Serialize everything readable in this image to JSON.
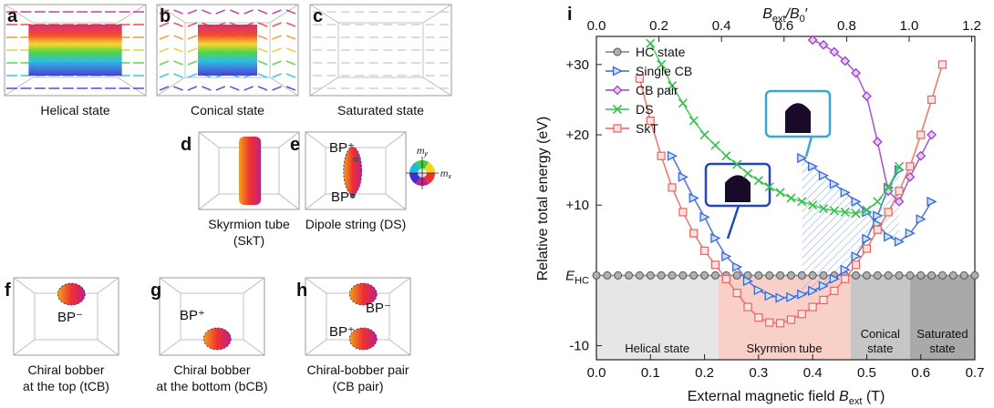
{
  "panels": [
    {
      "letter": "a",
      "caption": [
        "Helical state"
      ]
    },
    {
      "letter": "b",
      "caption": [
        "Conical state"
      ]
    },
    {
      "letter": "c",
      "caption": [
        "Saturated state"
      ]
    },
    {
      "letter": "d",
      "caption": [
        "Skyrmion tube",
        "(SkT)"
      ]
    },
    {
      "letter": "e",
      "caption": [
        "Dipole string (DS)"
      ],
      "points": [
        "BP⁺",
        "BP⁻"
      ]
    },
    {
      "letter": "f",
      "caption": [
        "Chiral bobber",
        "at the top (tCB)"
      ],
      "points": [
        "BP⁻"
      ]
    },
    {
      "letter": "g",
      "caption": [
        "Chiral bobber",
        "at the bottom (bCB)"
      ],
      "points": [
        "BP⁺"
      ]
    },
    {
      "letter": "h",
      "caption": [
        "Chiral-bobber pair",
        "(CB pair)"
      ],
      "points": [
        "BP⁺",
        "BP⁻"
      ]
    }
  ],
  "color_wheel": {
    "y_label": [
      "m",
      "y"
    ],
    "x_label": [
      "m",
      "x"
    ]
  },
  "chart_data": {
    "type": "line",
    "panel_letter": "i",
    "x_label": [
      "External magnetic field ",
      "B",
      "ext",
      " (T)"
    ],
    "y_label": "Relative total energy (eV)",
    "top_label": [
      "B",
      "ext",
      "/B",
      "0",
      "′"
    ],
    "xlim": [
      0,
      0.7
    ],
    "xticks": [
      {
        "value": 0,
        "label": "0.0"
      },
      {
        "value": 0.1,
        "label": "0.1"
      },
      {
        "value": 0.2,
        "label": "0.2"
      },
      {
        "value": 0.3,
        "label": "0.3"
      },
      {
        "value": 0.4,
        "label": "0.4"
      },
      {
        "value": 0.5,
        "label": "0.5"
      },
      {
        "value": 0.6,
        "label": "0.6"
      },
      {
        "value": 0.7,
        "label": "0.7"
      }
    ],
    "x2lim": [
      0,
      1.21
    ],
    "x2ticks": [
      {
        "value": 0,
        "label": "0.0"
      },
      {
        "value": 0.2,
        "label": "0.2"
      },
      {
        "value": 0.4,
        "label": "0.4"
      },
      {
        "value": 0.6,
        "label": "0.6"
      },
      {
        "value": 0.8,
        "label": "0.8"
      },
      {
        "value": 1,
        "label": "1.0"
      },
      {
        "value": 1.2,
        "label": "1.2"
      }
    ],
    "ylim": [
      -12,
      34
    ],
    "yticks": [
      {
        "value": 30,
        "label": "+30"
      },
      {
        "value": 20,
        "label": "+20"
      },
      {
        "value": 10,
        "label": "+10"
      },
      {
        "value": 0,
        "label": "E",
        "sub": "HC"
      },
      -10
    ],
    "regions": [
      {
        "label": [
          "Helical state"
        ],
        "x": [
          0,
          0.225
        ],
        "color": "#e6e6e6"
      },
      {
        "label": [
          "Skyrmion tube"
        ],
        "x": [
          0.225,
          0.47
        ],
        "color": "#f9d0c8"
      },
      {
        "label": [
          "Conical",
          "state"
        ],
        "x": [
          0.47,
          0.58
        ],
        "color": "#c6c6c6"
      },
      {
        "label": [
          "Saturated",
          "state"
        ],
        "x": [
          0.58,
          0.7
        ],
        "color": "#a9a9a9"
      }
    ],
    "legend": "upper left",
    "series": [
      {
        "name": "HC state",
        "color": "#7f7f7f",
        "marker": "circle",
        "x": [
          0,
          0.02,
          0.04,
          0.06,
          0.08,
          0.1,
          0.12,
          0.14,
          0.16,
          0.18,
          0.2,
          0.22,
          0.24,
          0.26,
          0.28,
          0.3,
          0.32,
          0.34,
          0.36,
          0.38,
          0.4,
          0.42,
          0.44,
          0.46,
          0.48,
          0.5,
          0.52,
          0.54,
          0.56,
          0.58,
          0.6,
          0.62,
          0.64,
          0.66,
          0.68,
          0.7
        ],
        "values": [
          0,
          0,
          0,
          0,
          0,
          0,
          0,
          0,
          0,
          0,
          0,
          0,
          0,
          0,
          0,
          0,
          0,
          0,
          0,
          0,
          0,
          0,
          0,
          0,
          0,
          0,
          0,
          0,
          0,
          0,
          0,
          0,
          0,
          0,
          0,
          0
        ]
      },
      {
        "name": "Single CB",
        "color": "#3d63d6",
        "marker": "triangle",
        "x": [
          0.14,
          0.16,
          0.18,
          0.2,
          0.22,
          0.24,
          0.26,
          0.28,
          0.3,
          0.32,
          0.34,
          0.36,
          0.38,
          0.4,
          0.42,
          0.44,
          0.46,
          0.48,
          0.5,
          0.52,
          0.54,
          0.56,
          null,
          0.38,
          0.4,
          0.42,
          0.44,
          0.46,
          0.48,
          0.5,
          0.52,
          0.54,
          0.56,
          0.58,
          0.6,
          0.62
        ],
        "values": [
          17,
          14,
          11,
          8.3,
          5.3,
          2.7,
          1.2,
          -0.8,
          -2.1,
          -2.9,
          -3.2,
          -3.1,
          -2.7,
          -2.2,
          -1.5,
          -0.5,
          0.8,
          2.7,
          5.2,
          8.5,
          12.5,
          15,
          null,
          16.7,
          15.5,
          14.2,
          13,
          11.8,
          10.5,
          9,
          7.3,
          5.5,
          4.8,
          6,
          8,
          10.5
        ]
      },
      {
        "name": "CB pair",
        "color": "#9a3fc9",
        "marker": "diamond",
        "x": [
          0.4,
          0.42,
          0.44,
          0.46,
          0.48,
          0.5,
          0.52,
          0.54,
          0.56,
          0.58,
          0.6,
          0.62
        ],
        "values": [
          33.5,
          32.8,
          31.8,
          30.5,
          28.8,
          25.5,
          19,
          12,
          10.5,
          14,
          17,
          20
        ]
      },
      {
        "name": "DS",
        "color": "#35c24a",
        "marker": "x",
        "x": [
          0.1,
          0.12,
          0.14,
          0.16,
          0.18,
          0.2,
          0.22,
          0.24,
          0.26,
          0.28,
          0.3,
          0.32,
          0.34,
          0.36,
          0.38,
          0.4,
          0.42,
          0.44,
          0.46,
          0.48,
          0.5,
          0.52,
          0.54,
          0.56
        ],
        "values": [
          33,
          30,
          27,
          24.5,
          22,
          20,
          18.5,
          17,
          15.8,
          14.5,
          13.5,
          12.6,
          11.8,
          11,
          10.5,
          10,
          9.5,
          9.2,
          9,
          8.8,
          9.3,
          10.5,
          12.5,
          15.5
        ]
      },
      {
        "name": "SkT",
        "color": "#e8645e",
        "marker": "square",
        "x": [
          0.08,
          0.1,
          0.12,
          0.14,
          0.16,
          0.18,
          0.2,
          0.22,
          0.24,
          0.26,
          0.28,
          0.3,
          0.32,
          0.34,
          0.36,
          0.38,
          0.4,
          0.42,
          0.44,
          0.46,
          0.48,
          0.5,
          0.52,
          0.54,
          0.56,
          0.58,
          0.6,
          0.62,
          0.64
        ],
        "values": [
          28,
          22,
          17,
          12.5,
          9,
          6,
          3.5,
          1.5,
          -0.5,
          -2.5,
          -4.5,
          -6,
          -6.7,
          -6.8,
          -6.3,
          -5.5,
          -4.5,
          -3.5,
          -2.2,
          -0.5,
          1.5,
          3.8,
          6.5,
          9,
          12,
          15.5,
          20,
          25,
          30
        ]
      }
    ]
  }
}
